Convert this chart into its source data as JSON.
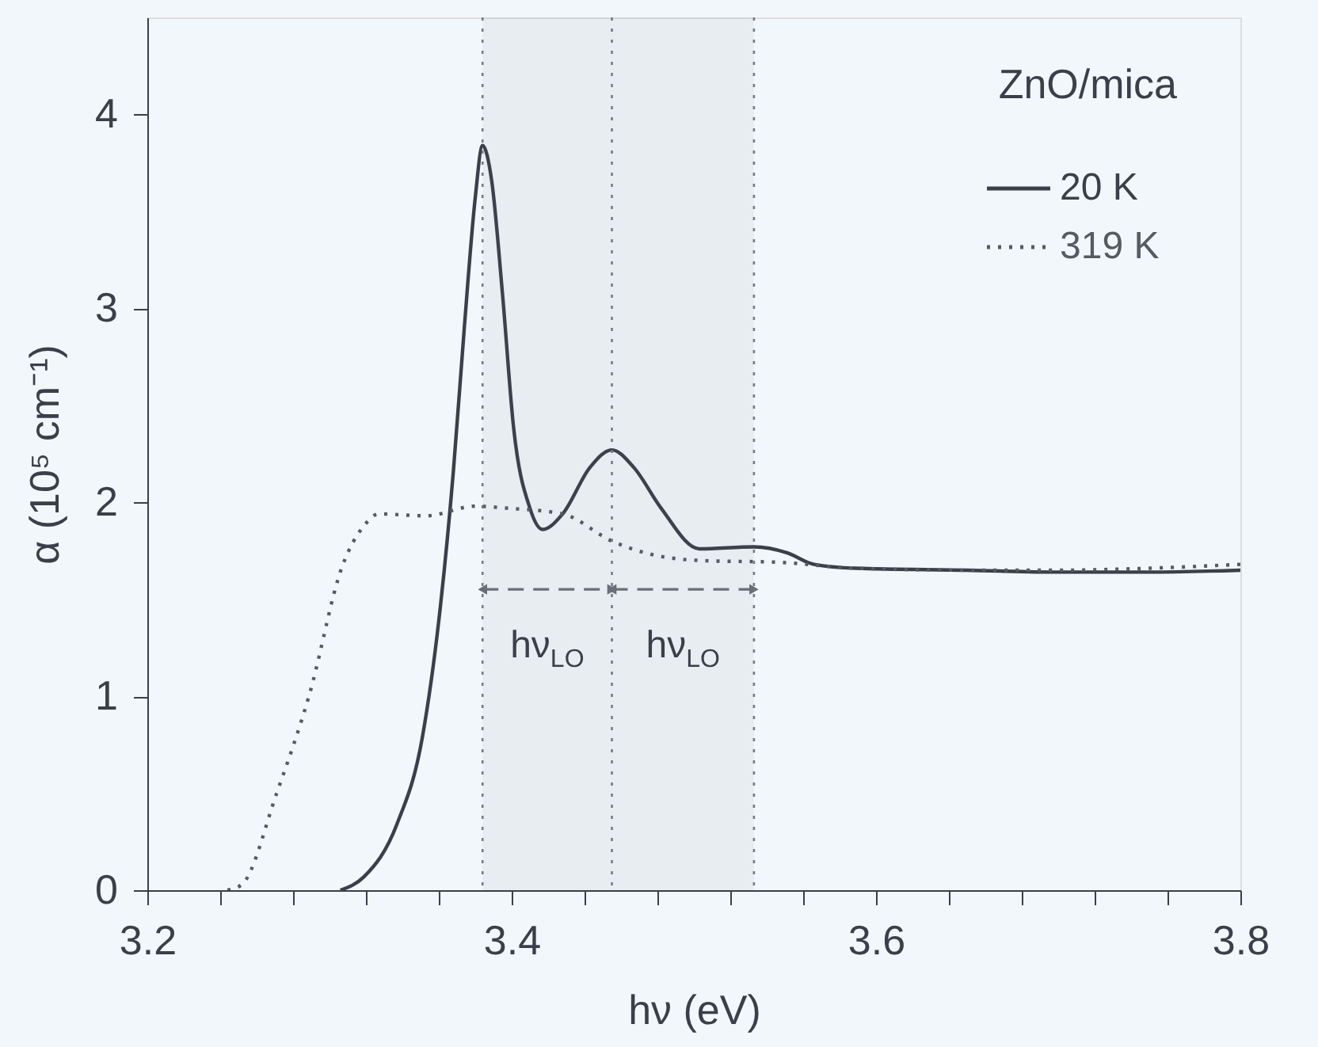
{
  "chart_data": {
    "type": "line",
    "xlabel": "hν (eV)",
    "ylabel": "α (10⁵ cm⁻¹)",
    "xlim": [
      3.2,
      3.8
    ],
    "ylim": [
      0,
      4.5
    ],
    "xticks": [
      3.2,
      {
        "value": 3.24,
        "label": null
      },
      {
        "value": 3.28,
        "label": null
      },
      {
        "value": 3.32,
        "label": null
      },
      {
        "value": 3.36,
        "label": null
      },
      3.4,
      {
        "value": 3.44,
        "label": null
      },
      {
        "value": 3.48,
        "label": null
      },
      {
        "value": 3.52,
        "label": null
      },
      {
        "value": 3.56,
        "label": null
      },
      3.6,
      {
        "value": 3.64,
        "label": null
      },
      {
        "value": 3.68,
        "label": null
      },
      {
        "value": 3.72,
        "label": null
      },
      {
        "value": 3.76,
        "label": null
      },
      3.8
    ],
    "yticks": [
      0,
      1,
      2,
      3,
      4
    ],
    "grid": false,
    "legend": "top right",
    "series": [
      {
        "name": "20 K",
        "color": "#3a3f4a",
        "line_style": "solid",
        "x": [
          3.306,
          3.319,
          3.337,
          3.351,
          3.36,
          3.368,
          3.374,
          3.38,
          3.384,
          3.389,
          3.395,
          3.401,
          3.41,
          3.417,
          3.428,
          3.443,
          3.455,
          3.467,
          3.482,
          3.503,
          3.533,
          3.551,
          3.566,
          3.589,
          3.65,
          3.7,
          3.75,
          3.8
        ],
        "values": [
          0,
          0.07,
          0.34,
          0.79,
          1.39,
          2.16,
          2.9,
          3.57,
          3.84,
          3.66,
          3.07,
          2.39,
          1.97,
          1.86,
          1.94,
          2.18,
          2.27,
          2.18,
          1.97,
          1.76,
          1.77,
          1.74,
          1.68,
          1.66,
          1.65,
          1.64,
          1.64,
          1.65
        ]
      },
      {
        "name": "319 K",
        "color": "#555a63",
        "line_style": "dotted",
        "x": [
          3.244,
          3.252,
          3.271,
          3.289,
          3.307,
          3.319,
          3.327,
          3.353,
          3.38,
          3.397,
          3.428,
          3.455,
          3.473,
          3.503,
          3.548,
          3.589,
          3.65,
          3.7,
          3.75,
          3.8
        ],
        "values": [
          0,
          0.03,
          0.5,
          1.01,
          1.67,
          1.88,
          1.94,
          1.93,
          1.98,
          1.97,
          1.94,
          1.8,
          1.74,
          1.7,
          1.69,
          1.66,
          1.65,
          1.65,
          1.66,
          1.68
        ]
      }
    ],
    "ref_lines": [
      {
        "axis": "x",
        "value": 3.384,
        "color": "#777b84",
        "line_style": "dotted"
      },
      {
        "axis": "x",
        "value": 3.455,
        "color": "#777b84",
        "line_style": "dotted"
      },
      {
        "axis": "x",
        "value": 3.533,
        "color": "#777b84",
        "line_style": "dotted"
      }
    ],
    "bands": [
      {
        "axis": "x",
        "from": 3.384,
        "to": 3.455,
        "label": "hν$_{LO}$",
        "color": "#6a6e77"
      },
      {
        "axis": "x",
        "from": 3.455,
        "to": 3.533,
        "label": "hν$_{LO}$",
        "color": "#6a6e77"
      }
    ],
    "annotations": [
      "ZnO/mica"
    ]
  }
}
